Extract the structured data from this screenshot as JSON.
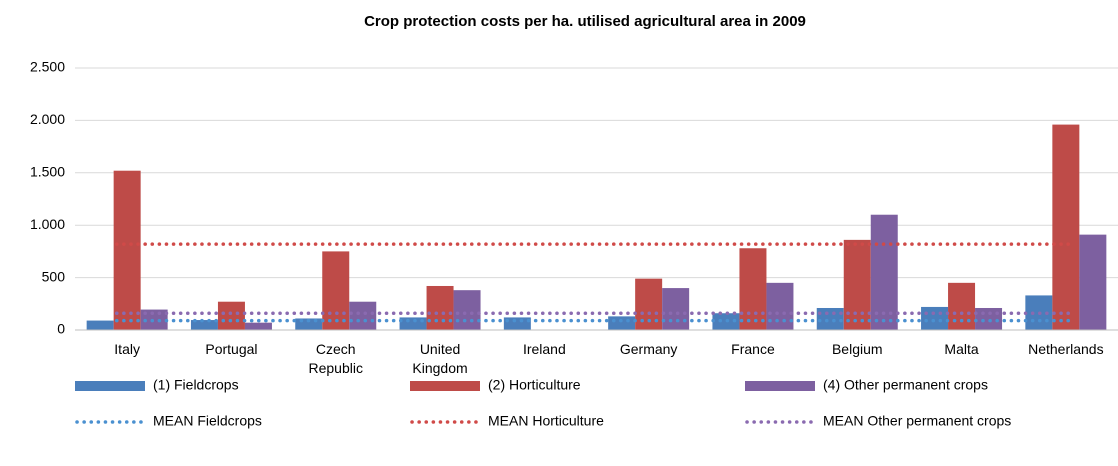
{
  "chart_data": {
    "type": "bar",
    "title": "Crop protection costs per ha. utilised agricultural area in 2009",
    "categories": [
      "Italy",
      "Portugal",
      "Czech Republic",
      "United Kingdom",
      "Ireland",
      "Germany",
      "France",
      "Belgium",
      "Malta",
      "Netherlands"
    ],
    "series": [
      {
        "name": "(1) Fieldcrops",
        "color": "#4a7ebb",
        "values": [
          90,
          95,
          110,
          120,
          120,
          130,
          160,
          210,
          220,
          330
        ]
      },
      {
        "name": "(2) Horticulture",
        "color": "#be4b48",
        "values": [
          1520,
          270,
          750,
          420,
          null,
          490,
          780,
          860,
          450,
          1960
        ]
      },
      {
        "name": "(4) Other permanent crops",
        "color": "#7d60a0",
        "values": [
          195,
          70,
          270,
          380,
          null,
          400,
          450,
          1100,
          210,
          910
        ]
      }
    ],
    "mean_lines": [
      {
        "name": "MEAN Fieldcrops",
        "color": "#4a90d0",
        "value": 90
      },
      {
        "name": "MEAN Horticulture",
        "color": "#d04a48",
        "value": 820
      },
      {
        "name": "MEAN Other permanent crops",
        "color": "#8a6ab0",
        "value": 160
      }
    ],
    "ylim": [
      0,
      2500
    ],
    "yticks": [
      0,
      500,
      {
        "value": 1000,
        "label": "1.000"
      },
      {
        "value": 1500,
        "label": "1.500"
      },
      {
        "value": 2000,
        "label": "2.000"
      },
      {
        "value": 2500,
        "label": "2.500"
      }
    ],
    "grid": true
  }
}
